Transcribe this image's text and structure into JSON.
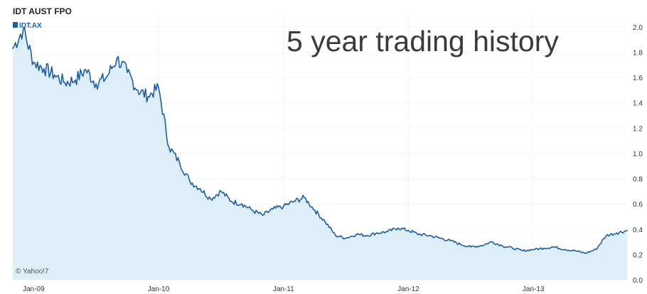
{
  "header": {
    "ticker_name": "IDT AUST FPO",
    "ticker_symbol": "IDT.AX"
  },
  "overlay_title": "5 year trading history",
  "watermark": "© Yahoo!7",
  "colors": {
    "line": "#1f5f9e",
    "area": "#ddeef8",
    "grid": "#c8c8c8"
  },
  "chart_data": {
    "type": "area",
    "title": "IDT AUST FPO",
    "series": [
      {
        "name": "IDT.AX",
        "x": [
          "2008-11",
          "2008-12",
          "2009-01",
          "2009-02",
          "2009-03",
          "2009-04",
          "2009-05",
          "2009-06",
          "2009-07",
          "2009-08",
          "2009-09",
          "2009-10",
          "2009-11",
          "2009-12",
          "2010-01",
          "2010-02",
          "2010-03",
          "2010-04",
          "2010-05",
          "2010-06",
          "2010-07",
          "2010-08",
          "2010-09",
          "2010-10",
          "2010-11",
          "2010-12",
          "2011-01",
          "2011-02",
          "2011-03",
          "2011-04",
          "2011-05",
          "2011-06",
          "2011-07",
          "2011-08",
          "2011-09",
          "2011-10",
          "2011-11",
          "2011-12",
          "2012-01",
          "2012-02",
          "2012-03",
          "2012-04",
          "2012-05",
          "2012-06",
          "2012-07",
          "2012-08",
          "2012-09",
          "2012-10",
          "2012-11",
          "2012-12",
          "2013-01",
          "2013-02",
          "2013-03",
          "2013-04",
          "2013-05",
          "2013-06",
          "2013-07",
          "2013-08",
          "2013-09",
          "2013-10"
        ],
        "values": [
          1.83,
          1.98,
          1.72,
          1.67,
          1.62,
          1.56,
          1.58,
          1.66,
          1.55,
          1.6,
          1.75,
          1.64,
          1.5,
          1.45,
          1.52,
          1.05,
          0.93,
          0.78,
          0.72,
          0.64,
          0.7,
          0.62,
          0.6,
          0.55,
          0.51,
          0.56,
          0.58,
          0.62,
          0.65,
          0.55,
          0.46,
          0.35,
          0.33,
          0.36,
          0.35,
          0.37,
          0.38,
          0.41,
          0.39,
          0.36,
          0.35,
          0.33,
          0.31,
          0.28,
          0.26,
          0.27,
          0.3,
          0.27,
          0.25,
          0.23,
          0.24,
          0.25,
          0.26,
          0.24,
          0.23,
          0.21,
          0.24,
          0.35,
          0.37,
          0.39
        ]
      }
    ],
    "x_tick_labels": [
      "Jan-09",
      "Jan-10",
      "Jan-11",
      "Jan-12",
      "Jan-13"
    ],
    "y_ticks": [
      0.0,
      0.2,
      0.4,
      0.6,
      0.8,
      1.0,
      1.2,
      1.4,
      1.6,
      1.8,
      2.0
    ],
    "y_tick_labels": [
      "0.0",
      "0.2",
      "0.4",
      "0.6",
      "0.8",
      "1.0",
      "1.2",
      "1.4",
      "1.6",
      "1.8",
      "2.0"
    ],
    "ylim": [
      0,
      2.1
    ],
    "grid": true,
    "legend": "top-left"
  }
}
